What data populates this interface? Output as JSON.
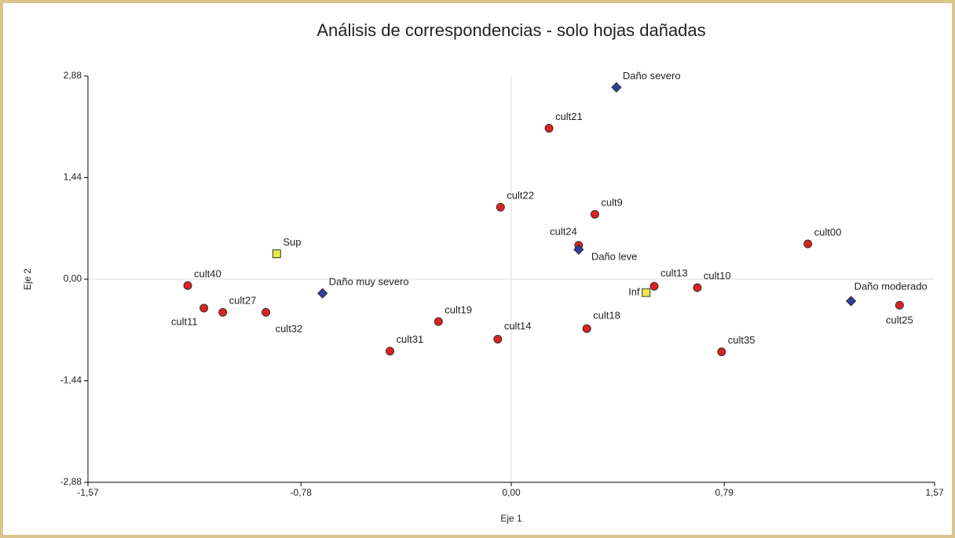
{
  "chart_data": {
    "type": "scatter",
    "title": "Análisis de correspondencias - solo hojas dañadas",
    "x_label": "Eje 1",
    "y_label": "Eje 2",
    "xlim": [
      -1.57,
      1.57
    ],
    "ylim": [
      -2.88,
      2.88
    ],
    "xticks": [
      {
        "value": -1.57,
        "label": "-1,57"
      },
      {
        "value": -0.78,
        "label": "-0,78"
      },
      {
        "value": 0,
        "label": "0,00"
      },
      {
        "value": 0.79,
        "label": "0,79"
      },
      {
        "value": 1.57,
        "label": "1,57"
      }
    ],
    "yticks": [
      {
        "value": -2.88,
        "label": "-2,88"
      },
      {
        "value": -1.44,
        "label": "-1,44"
      },
      {
        "value": 0,
        "label": "0,00"
      },
      {
        "value": 1.44,
        "label": "1,44"
      },
      {
        "value": 2.88,
        "label": "2,88"
      }
    ],
    "series": [
      {
        "color": "#e02020",
        "marker": "circle",
        "labels": [
          "cult21",
          "cult22",
          "cult9",
          "cult24",
          "cult00",
          "cult40",
          "cult13",
          "cult10",
          "cult25",
          "cult11",
          "cult27",
          "cult32",
          "cult19",
          "cult18",
          "cult14",
          "cult31",
          "cult35"
        ],
        "x": [
          0.14,
          -0.04,
          0.31,
          0.25,
          1.1,
          -1.2,
          0.53,
          0.69,
          1.44,
          -1.14,
          -1.07,
          -0.91,
          -0.27,
          0.28,
          -0.05,
          -0.45,
          0.78
        ],
        "values": [
          2.14,
          1.02,
          0.92,
          0.48,
          0.5,
          -0.09,
          -0.1,
          -0.12,
          -0.37,
          -0.41,
          -0.47,
          -0.47,
          -0.6,
          -0.7,
          -0.85,
          -1.02,
          -1.03
        ]
      },
      {
        "color": "#2e3f9e",
        "marker": "diamond",
        "labels": [
          "Daño severo",
          "Daño leve",
          "Daño muy severo",
          "Daño moderado"
        ],
        "x": [
          0.39,
          0.25,
          -0.7,
          1.26
        ],
        "values": [
          2.72,
          0.42,
          -0.2,
          -0.31
        ]
      },
      {
        "color": "#e8e84a",
        "marker": "square",
        "labels": [
          "Sup",
          "Inf"
        ],
        "x": [
          -0.87,
          0.5
        ],
        "values": [
          0.36,
          -0.19
        ]
      }
    ]
  }
}
